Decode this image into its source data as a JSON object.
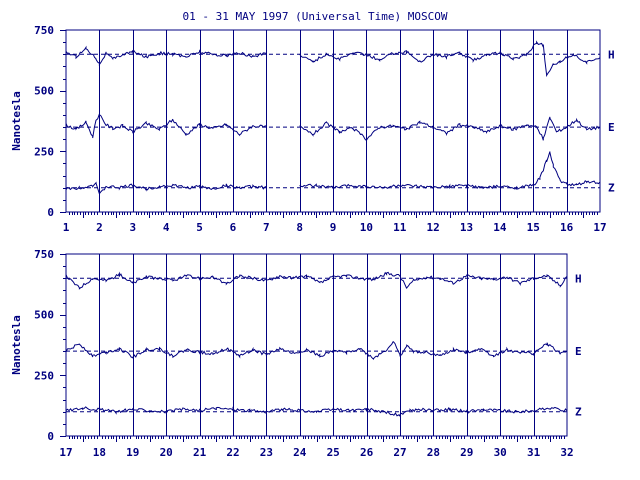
{
  "title": "01 - 31 MAY 1997 (Universal Time) MOSCOW",
  "colors": {
    "ink": "#000080",
    "background": "#ffffff"
  },
  "chart_data": [
    {
      "type": "line",
      "panel": "top",
      "ylabel": "Nanotesla",
      "ylim": [
        0,
        750
      ],
      "yticks": [
        0,
        250,
        500,
        750
      ],
      "xlim": [
        1,
        17
      ],
      "xticks": [
        1,
        2,
        3,
        4,
        5,
        6,
        7,
        8,
        9,
        10,
        11,
        12,
        13,
        14,
        15,
        16,
        17
      ],
      "x_gaps": [
        [
          7.0,
          8.0
        ]
      ],
      "grid": "vertical lines at each day",
      "series": [
        {
          "name": "H",
          "baseline": 650,
          "x": [
            1.0,
            1.3,
            1.6,
            1.9,
            2.0,
            2.2,
            2.4,
            2.7,
            3.0,
            3.4,
            3.8,
            4.2,
            4.6,
            5.0,
            5.4,
            5.8,
            6.2,
            6.6,
            7.0,
            8.0,
            8.4,
            8.8,
            9.2,
            9.6,
            10.0,
            10.4,
            10.8,
            11.2,
            11.6,
            12.0,
            12.4,
            12.8,
            13.2,
            13.6,
            14.0,
            14.4,
            14.8,
            15.1,
            15.3,
            15.4,
            15.6,
            15.8,
            16.2,
            16.6,
            17.0
          ],
          "y": [
            660,
            640,
            675,
            635,
            610,
            655,
            630,
            650,
            660,
            640,
            655,
            650,
            640,
            660,
            650,
            645,
            655,
            640,
            655,
            650,
            620,
            650,
            630,
            655,
            650,
            625,
            655,
            660,
            620,
            650,
            640,
            655,
            625,
            650,
            655,
            630,
            650,
            700,
            685,
            560,
            610,
            620,
            650,
            615,
            640
          ]
        },
        {
          "name": "E",
          "baseline": 350,
          "x": [
            1.0,
            1.3,
            1.6,
            1.8,
            1.9,
            2.0,
            2.2,
            2.4,
            2.7,
            3.0,
            3.4,
            3.8,
            4.2,
            4.6,
            5.0,
            5.4,
            5.8,
            6.2,
            6.6,
            7.0,
            8.0,
            8.4,
            8.8,
            9.2,
            9.6,
            10.0,
            10.4,
            10.8,
            11.2,
            11.6,
            12.0,
            12.4,
            12.8,
            13.2,
            13.6,
            14.0,
            14.4,
            14.8,
            15.1,
            15.3,
            15.5,
            15.7,
            16.0,
            16.3,
            16.6,
            17.0
          ],
          "y": [
            360,
            340,
            370,
            310,
            380,
            400,
            360,
            345,
            355,
            330,
            365,
            340,
            380,
            320,
            360,
            345,
            360,
            320,
            355,
            350,
            350,
            320,
            365,
            330,
            345,
            300,
            350,
            355,
            340,
            370,
            350,
            325,
            360,
            350,
            330,
            355,
            340,
            360,
            350,
            300,
            390,
            330,
            350,
            380,
            340,
            350
          ]
        },
        {
          "name": "Z",
          "baseline": 100,
          "x": [
            1.0,
            1.4,
            1.8,
            1.9,
            2.0,
            2.2,
            2.6,
            3.0,
            3.4,
            3.8,
            4.2,
            4.6,
            5.0,
            5.4,
            5.8,
            6.2,
            6.6,
            7.0,
            8.0,
            8.5,
            9.0,
            9.5,
            10.0,
            10.5,
            11.0,
            11.5,
            12.0,
            12.5,
            13.0,
            13.5,
            14.0,
            14.5,
            15.0,
            15.2,
            15.4,
            15.5,
            15.6,
            15.8,
            16.0,
            16.3,
            16.6,
            17.0
          ],
          "y": [
            95,
            100,
            110,
            120,
            70,
            105,
            100,
            110,
            95,
            105,
            110,
            100,
            105,
            95,
            110,
            100,
            105,
            100,
            105,
            110,
            100,
            110,
            105,
            100,
            110,
            105,
            100,
            105,
            110,
            100,
            105,
            100,
            110,
            140,
            210,
            250,
            190,
            130,
            115,
            110,
            125,
            120
          ]
        }
      ]
    },
    {
      "type": "line",
      "panel": "bottom",
      "ylabel": "Nanotesla",
      "ylim": [
        0,
        750
      ],
      "yticks": [
        0,
        250,
        500,
        750
      ],
      "xlim": [
        17,
        32
      ],
      "xticks": [
        17,
        18,
        19,
        20,
        21,
        22,
        23,
        24,
        25,
        26,
        27,
        28,
        29,
        30,
        31,
        32
      ],
      "x_gaps": [],
      "grid": "vertical lines at each day",
      "series": [
        {
          "name": "H",
          "baseline": 650,
          "x": [
            17.0,
            17.4,
            17.8,
            18.2,
            18.6,
            19.0,
            19.4,
            19.8,
            20.2,
            20.6,
            21.0,
            21.4,
            21.8,
            22.2,
            22.6,
            23.0,
            23.4,
            23.8,
            24.2,
            24.6,
            25.0,
            25.4,
            25.8,
            26.2,
            26.6,
            27.0,
            27.2,
            27.4,
            27.8,
            28.2,
            28.6,
            29.0,
            29.4,
            29.8,
            30.2,
            30.6,
            31.0,
            31.4,
            31.8,
            32.0
          ],
          "y": [
            660,
            610,
            650,
            640,
            665,
            630,
            655,
            650,
            640,
            660,
            650,
            655,
            625,
            660,
            650,
            640,
            660,
            650,
            660,
            630,
            655,
            660,
            650,
            645,
            670,
            660,
            610,
            640,
            655,
            650,
            630,
            660,
            650,
            645,
            655,
            630,
            650,
            660,
            620,
            660
          ]
        },
        {
          "name": "E",
          "baseline": 350,
          "x": [
            17.0,
            17.4,
            17.8,
            18.2,
            18.6,
            19.0,
            19.4,
            19.8,
            20.2,
            20.6,
            21.0,
            21.4,
            21.8,
            22.2,
            22.6,
            23.0,
            23.4,
            23.8,
            24.2,
            24.6,
            25.0,
            25.4,
            25.8,
            26.2,
            26.6,
            26.8,
            27.0,
            27.2,
            27.4,
            27.8,
            28.2,
            28.6,
            29.0,
            29.4,
            29.8,
            30.2,
            30.6,
            31.0,
            31.4,
            31.8,
            32.0
          ],
          "y": [
            350,
            380,
            330,
            345,
            360,
            325,
            355,
            360,
            330,
            355,
            345,
            340,
            360,
            330,
            355,
            335,
            360,
            340,
            355,
            330,
            350,
            345,
            360,
            320,
            355,
            390,
            330,
            370,
            350,
            345,
            330,
            355,
            345,
            360,
            330,
            355,
            345,
            340,
            380,
            340,
            350
          ]
        },
        {
          "name": "Z",
          "baseline": 100,
          "x": [
            17.0,
            17.5,
            18.0,
            18.5,
            19.0,
            19.5,
            20.0,
            20.5,
            21.0,
            21.5,
            22.0,
            22.5,
            23.0,
            23.5,
            24.0,
            24.5,
            25.0,
            25.5,
            26.0,
            26.5,
            27.0,
            27.3,
            27.6,
            28.0,
            28.5,
            29.0,
            29.5,
            30.0,
            30.5,
            31.0,
            31.5,
            32.0
          ],
          "y": [
            105,
            115,
            110,
            100,
            110,
            105,
            100,
            110,
            105,
            115,
            110,
            105,
            100,
            110,
            105,
            100,
            110,
            105,
            110,
            100,
            85,
            105,
            110,
            105,
            110,
            100,
            110,
            105,
            100,
            105,
            115,
            105
          ]
        }
      ]
    }
  ]
}
